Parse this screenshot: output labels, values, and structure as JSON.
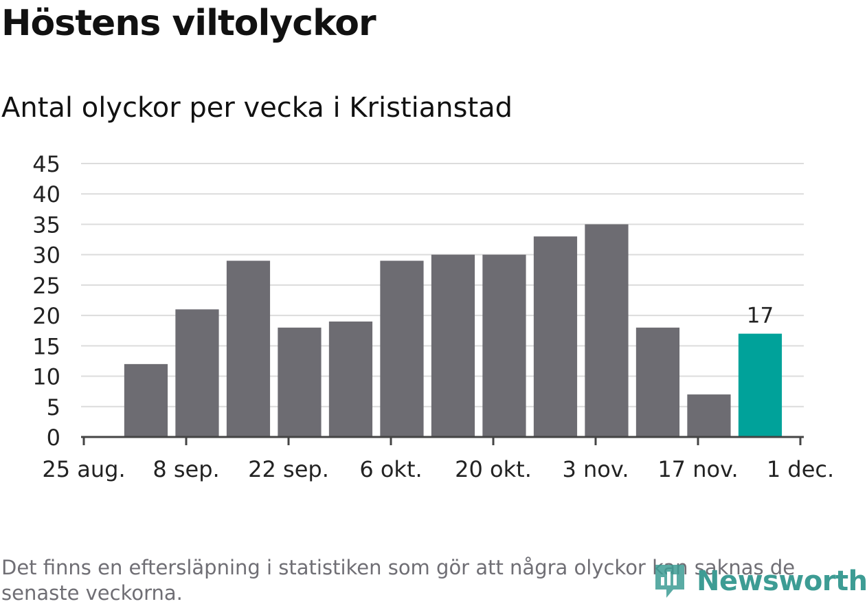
{
  "header": {
    "title": "Höstens viltolyckor",
    "subtitle": "Antal olyckor per vecka i Kristianstad"
  },
  "chart_data": {
    "type": "bar",
    "title": "Höstens viltolyckor",
    "subtitle": "Antal olyckor per vecka i Kristianstad",
    "xlabel": "",
    "ylabel": "",
    "ylim": [
      0,
      45
    ],
    "yticks": [
      0,
      5,
      10,
      15,
      20,
      25,
      30,
      35,
      40,
      45
    ],
    "grid": true,
    "x_axis": {
      "type": "date",
      "range": [
        "2019-08-25",
        "2019-12-01"
      ],
      "tick_dates": [
        "2019-08-25",
        "2019-09-08",
        "2019-09-22",
        "2019-10-06",
        "2019-10-20",
        "2019-11-03",
        "2019-11-17",
        "2019-12-01"
      ],
      "tick_labels": [
        "25 aug.",
        "8 sep.",
        "22 sep.",
        "6 okt.",
        "20 okt.",
        "3 nov.",
        "17 nov.",
        "1 dec."
      ]
    },
    "x": [
      "2019-09-02",
      "2019-09-09",
      "2019-09-16",
      "2019-09-23",
      "2019-09-30",
      "2019-10-07",
      "2019-10-14",
      "2019-10-21",
      "2019-10-28",
      "2019-11-04",
      "2019-11-11",
      "2019-11-18",
      "2019-11-25"
    ],
    "values": [
      12,
      21,
      29,
      18,
      19,
      29,
      30,
      30,
      33,
      35,
      18,
      7,
      17
    ],
    "highlight_index": 12,
    "data_labels": [
      {
        "index": 12,
        "text": "17"
      }
    ],
    "colors": {
      "bar": "#6d6c72",
      "highlight": "#00a29a",
      "grid": "#dcdcdc",
      "axis": "#444444"
    }
  },
  "footer": {
    "note": "Det finns en eftersläpning i statistiken som gör att några olyckor kan saknas de senaste veckorna.",
    "brand": "Newsworthy",
    "brand_icon": "newsworthy-logo-icon",
    "brand_color": "#3d9c94"
  }
}
